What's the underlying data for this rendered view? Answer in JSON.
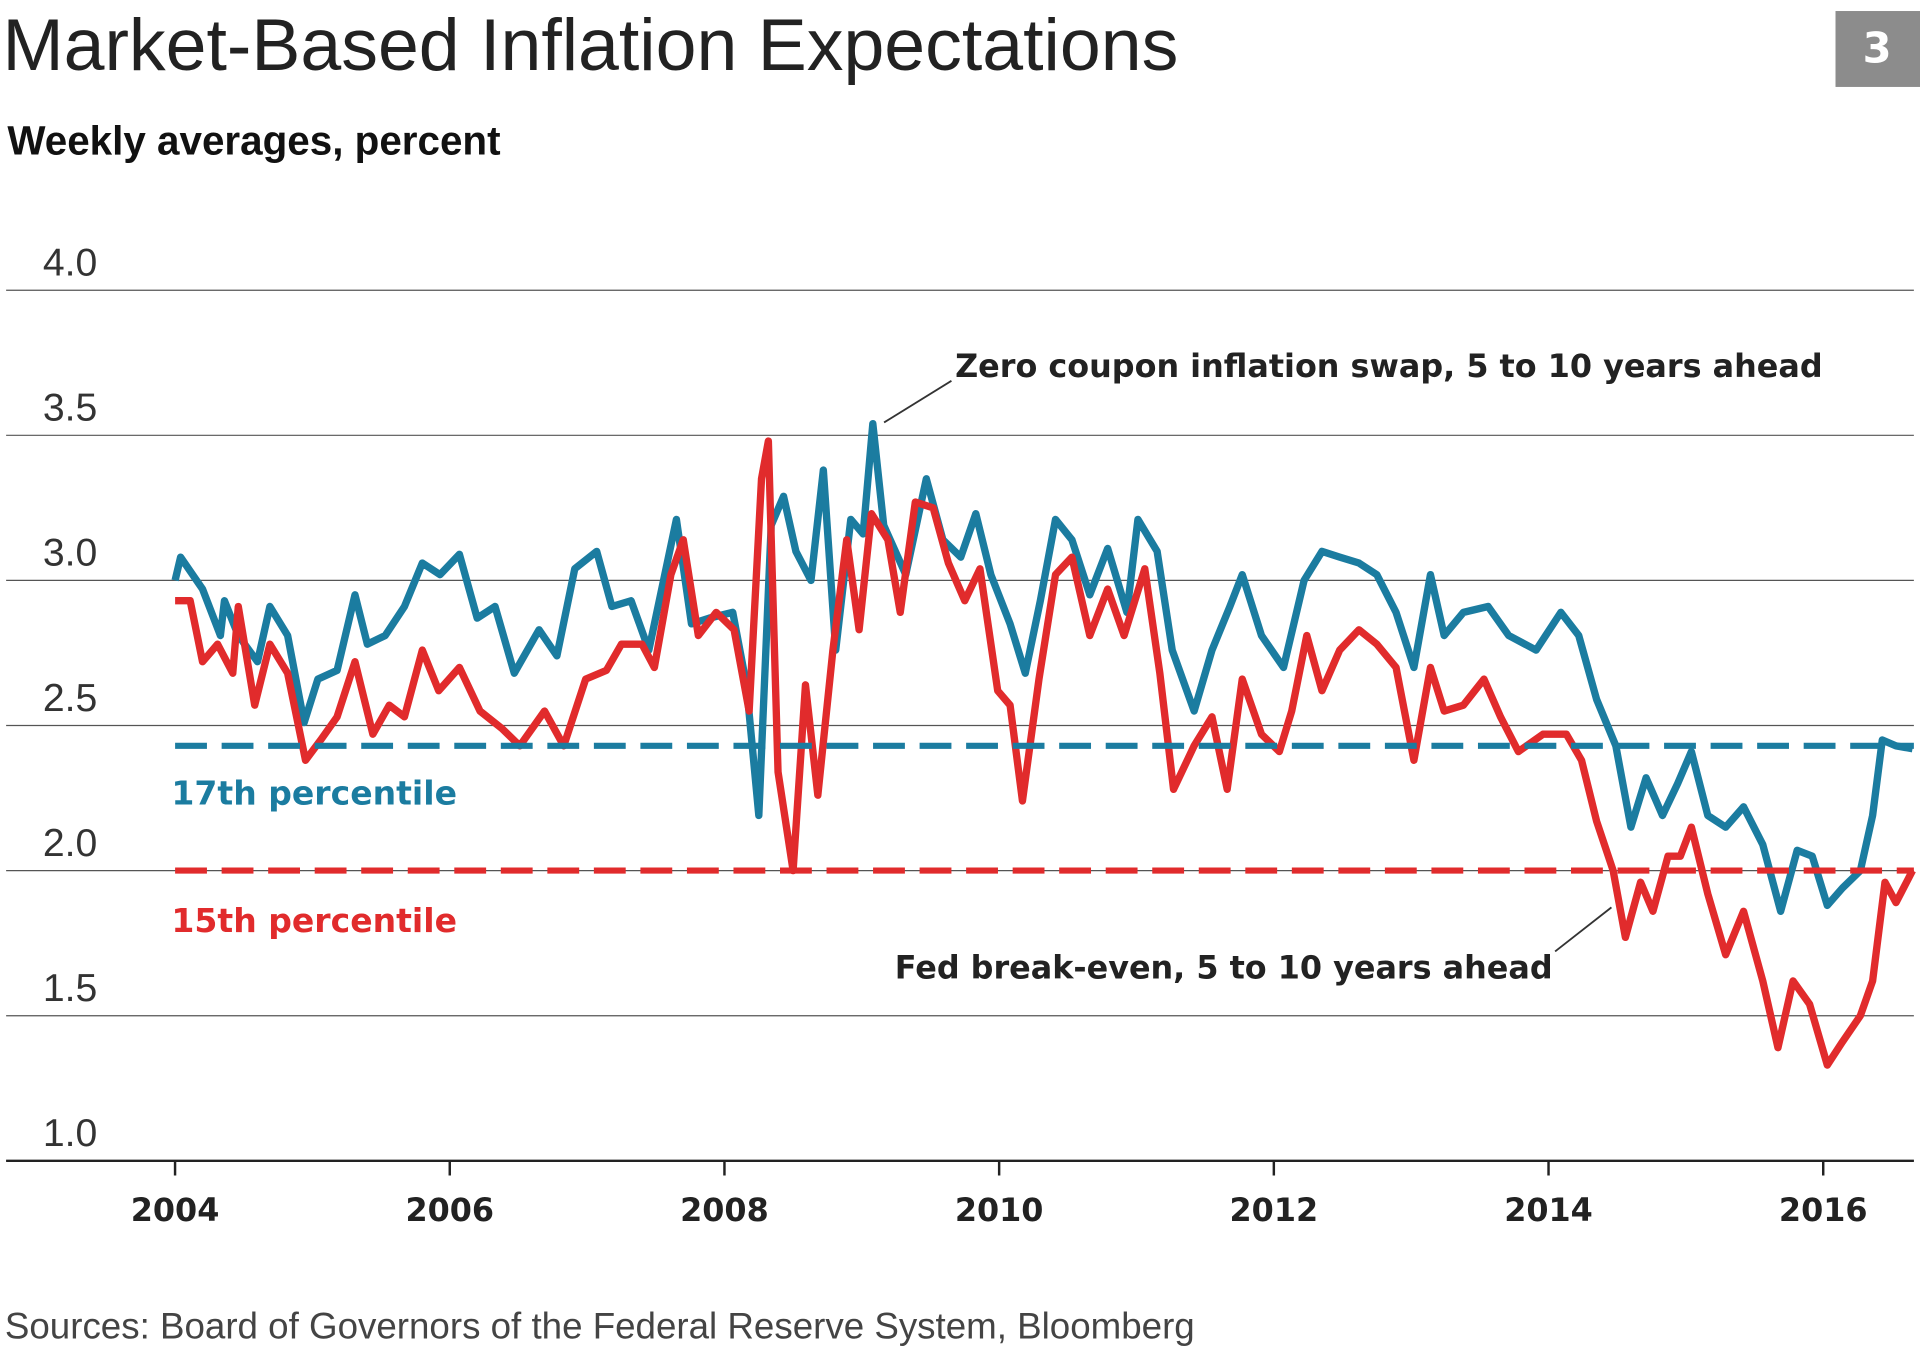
{
  "page_number": "3",
  "chart_data": {
    "type": "line",
    "title": "Market-Based Inflation Expectations",
    "subtitle": "Weekly averages, percent",
    "source": "Sources: Board of Governors of the Federal Reserve System, Bloomberg",
    "xlim": [
      2002.77,
      2016.66
    ],
    "xticks": [
      2004,
      2006,
      2008,
      2010,
      2012,
      2014,
      2016
    ],
    "ylim": [
      1,
      4
    ],
    "yticks": [
      {
        "value": 1,
        "label": "1.0"
      },
      {
        "value": 1.5,
        "label": "1.5"
      },
      {
        "value": 2,
        "label": "2.0"
      },
      {
        "value": 2.5,
        "label": "2.5"
      },
      {
        "value": 3,
        "label": "3.0"
      },
      {
        "value": 3.5,
        "label": "3.5"
      },
      {
        "value": 4,
        "label": "4.0"
      }
    ],
    "grid": true,
    "reference_lines": [
      {
        "label": "17th percentile",
        "value": 2.43,
        "color": "#1b7ca0"
      },
      {
        "label": "15th percentile",
        "value": 2.0,
        "color": "#e12b2c"
      }
    ],
    "annotations": [
      "Zero coupon inflation swap, 5 to 10 years ahead",
      "Fed break-even, 5 to 10 years ahead"
    ],
    "series": [
      {
        "name": "Zero coupon inflation swap, 5 to 10 years ahead",
        "color": "#1b7ca0",
        "x": [
          2004.0,
          2004.04,
          2004.2,
          2004.33,
          2004.36,
          2004.46,
          2004.6,
          2004.69,
          2004.82,
          2004.94,
          2005.04,
          2005.18,
          2005.31,
          2005.4,
          2005.53,
          2005.67,
          2005.8,
          2005.93,
          2006.07,
          2006.2,
          2006.33,
          2006.47,
          2006.65,
          2006.78,
          2006.91,
          2007.07,
          2007.18,
          2007.32,
          2007.45,
          2007.65,
          2007.76,
          2007.89,
          2008.06,
          2008.16,
          2008.25,
          2008.34,
          2008.43,
          2008.52,
          2008.63,
          2008.72,
          2008.81,
          2008.92,
          2009.01,
          2009.08,
          2009.16,
          2009.32,
          2009.47,
          2009.59,
          2009.72,
          2009.83,
          2009.94,
          2010.08,
          2010.19,
          2010.3,
          2010.41,
          2010.53,
          2010.66,
          2010.79,
          2010.93,
          2011.01,
          2011.15,
          2011.26,
          2011.42,
          2011.55,
          2011.68,
          2011.77,
          2011.91,
          2012.07,
          2012.22,
          2012.35,
          2012.48,
          2012.62,
          2012.75,
          2012.89,
          2013.02,
          2013.14,
          2013.24,
          2013.38,
          2013.56,
          2013.71,
          2013.91,
          2014.09,
          2014.22,
          2014.35,
          2014.49,
          2014.6,
          2014.71,
          2014.83,
          2014.94,
          2015.04,
          2015.16,
          2015.29,
          2015.42,
          2015.56,
          2015.69,
          2015.81,
          2015.92,
          2016.03,
          2016.14,
          2016.27,
          2016.36,
          2016.43,
          2016.53,
          2016.65
        ],
        "values": [
          3.0,
          3.08,
          2.97,
          2.81,
          2.93,
          2.81,
          2.72,
          2.91,
          2.81,
          2.51,
          2.66,
          2.69,
          2.95,
          2.78,
          2.81,
          2.91,
          3.06,
          3.02,
          3.09,
          2.87,
          2.91,
          2.68,
          2.83,
          2.74,
          3.04,
          3.1,
          2.91,
          2.93,
          2.76,
          3.21,
          2.85,
          2.87,
          2.89,
          2.64,
          2.19,
          3.19,
          3.29,
          3.1,
          3.0,
          3.38,
          2.76,
          3.21,
          3.16,
          3.54,
          3.19,
          3.02,
          3.35,
          3.14,
          3.08,
          3.23,
          3.02,
          2.85,
          2.68,
          2.93,
          3.21,
          3.14,
          2.95,
          3.11,
          2.89,
          3.21,
          3.1,
          2.76,
          2.55,
          2.76,
          2.91,
          3.02,
          2.81,
          2.7,
          3.0,
          3.1,
          3.08,
          3.06,
          3.02,
          2.89,
          2.7,
          3.02,
          2.81,
          2.89,
          2.91,
          2.81,
          2.76,
          2.89,
          2.81,
          2.59,
          2.43,
          2.15,
          2.32,
          2.19,
          2.3,
          2.41,
          2.19,
          2.15,
          2.22,
          2.09,
          1.86,
          2.07,
          2.05,
          1.88,
          1.94,
          2.0,
          2.19,
          2.45,
          2.43,
          2.42
        ]
      },
      {
        "name": "Fed break-even, 5 to 10 years ahead",
        "color": "#e12b2c",
        "x": [
          2004.0,
          2004.11,
          2004.2,
          2004.31,
          2004.42,
          2004.46,
          2004.58,
          2004.69,
          2004.82,
          2004.95,
          2005.06,
          2005.18,
          2005.31,
          2005.44,
          2005.56,
          2005.67,
          2005.8,
          2005.92,
          2006.07,
          2006.22,
          2006.38,
          2006.51,
          2006.69,
          2006.83,
          2006.99,
          2007.14,
          2007.25,
          2007.4,
          2007.49,
          2007.61,
          2007.7,
          2007.81,
          2007.94,
          2008.07,
          2008.18,
          2008.27,
          2008.32,
          2008.39,
          2008.5,
          2008.59,
          2008.68,
          2008.79,
          2008.89,
          2008.98,
          2009.07,
          2009.19,
          2009.28,
          2009.39,
          2009.52,
          2009.63,
          2009.75,
          2009.86,
          2009.99,
          2010.08,
          2010.17,
          2010.29,
          2010.41,
          2010.53,
          2010.66,
          2010.79,
          2010.91,
          2011.06,
          2011.17,
          2011.27,
          2011.42,
          2011.55,
          2011.66,
          2011.77,
          2011.91,
          2012.04,
          2012.13,
          2012.24,
          2012.35,
          2012.48,
          2012.62,
          2012.75,
          2012.89,
          2013.02,
          2013.14,
          2013.24,
          2013.38,
          2013.53,
          2013.65,
          2013.78,
          2013.96,
          2014.13,
          2014.24,
          2014.35,
          2014.47,
          2014.56,
          2014.67,
          2014.76,
          2014.87,
          2014.96,
          2015.04,
          2015.16,
          2015.29,
          2015.42,
          2015.56,
          2015.67,
          2015.78,
          2015.9,
          2016.03,
          2016.14,
          2016.27,
          2016.36,
          2016.45,
          2016.53,
          2016.65
        ],
        "values": [
          2.93,
          2.93,
          2.72,
          2.78,
          2.68,
          2.91,
          2.57,
          2.78,
          2.68,
          2.38,
          2.45,
          2.53,
          2.72,
          2.47,
          2.57,
          2.53,
          2.76,
          2.62,
          2.7,
          2.55,
          2.49,
          2.43,
          2.55,
          2.43,
          2.66,
          2.69,
          2.78,
          2.78,
          2.7,
          3.02,
          3.14,
          2.81,
          2.89,
          2.83,
          2.55,
          3.35,
          3.48,
          2.34,
          2.0,
          2.64,
          2.26,
          2.76,
          3.14,
          2.83,
          3.23,
          3.14,
          2.89,
          3.27,
          3.25,
          3.06,
          2.93,
          3.04,
          2.62,
          2.57,
          2.24,
          2.66,
          3.02,
          3.08,
          2.81,
          2.97,
          2.81,
          3.04,
          2.68,
          2.28,
          2.43,
          2.53,
          2.28,
          2.66,
          2.47,
          2.41,
          2.55,
          2.81,
          2.62,
          2.76,
          2.83,
          2.78,
          2.7,
          2.38,
          2.7,
          2.55,
          2.57,
          2.66,
          2.53,
          2.41,
          2.47,
          2.47,
          2.38,
          2.17,
          2.0,
          1.77,
          1.96,
          1.86,
          2.05,
          2.05,
          2.15,
          1.92,
          1.71,
          1.86,
          1.62,
          1.39,
          1.62,
          1.54,
          1.33,
          1.41,
          1.5,
          1.62,
          1.96,
          1.89,
          2.0
        ]
      }
    ]
  }
}
